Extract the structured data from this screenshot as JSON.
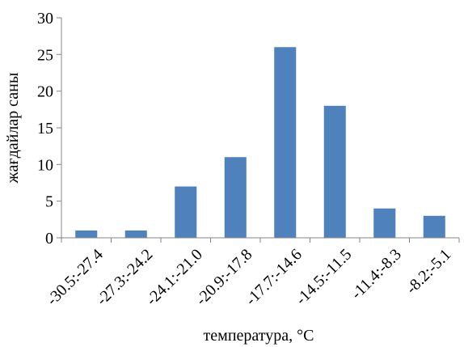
{
  "chart_data": {
    "type": "bar",
    "categories": [
      "-30.5:-27.4",
      "-27.3:-24.2",
      "-24.1:-21.0",
      "-20.9:-17.8",
      "-17.7:-14.6",
      "-14.5:-11.5",
      "-11.4:-8.3",
      "-8.2:-5.1"
    ],
    "values": [
      1,
      1,
      7,
      11,
      26,
      18,
      4,
      3
    ],
    "title": "",
    "xlabel": "температура, °С",
    "ylabel": "жағдайлар саны",
    "ylim": [
      0,
      30
    ],
    "yticks": [
      0,
      5,
      10,
      15,
      20,
      25,
      30
    ],
    "grid": false,
    "legend": "none",
    "bar_color": "#4f81bd",
    "axis_color": "#868686"
  }
}
